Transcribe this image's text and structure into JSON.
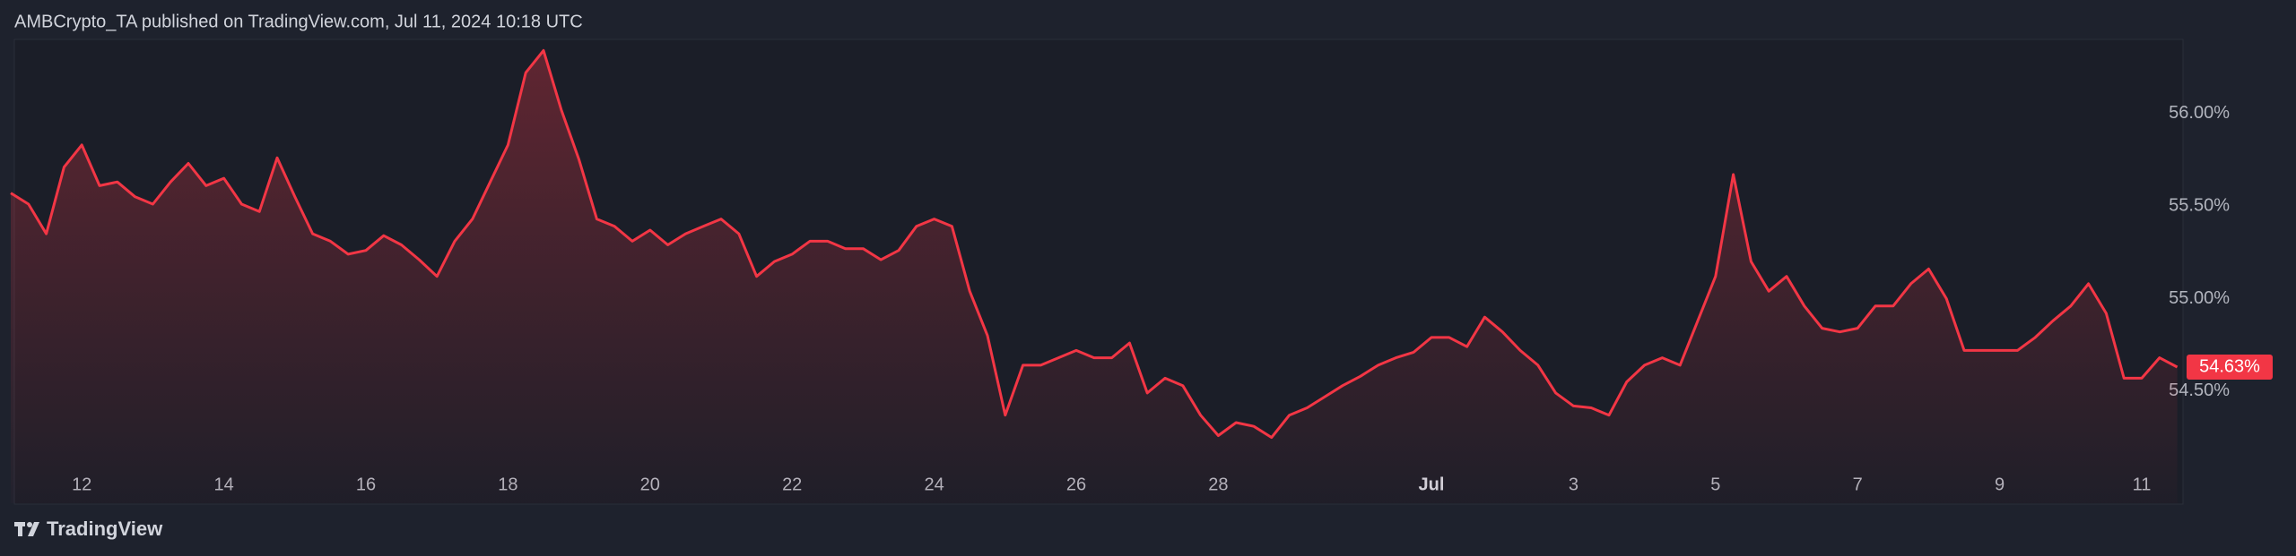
{
  "chart_data": {
    "type": "area",
    "title": "AMBCrypto_TA published on TradingView.com, Jul 11, 2024 10:18 UTC",
    "watermark": "TradingView",
    "color": "#f23645",
    "categories": [
      null,
      null,
      null,
      null,
      "12",
      null,
      null,
      null,
      null,
      null,
      null,
      null,
      "14",
      null,
      null,
      null,
      null,
      null,
      null,
      null,
      "16",
      null,
      null,
      null,
      null,
      null,
      null,
      null,
      "18",
      null,
      null,
      null,
      null,
      null,
      null,
      null,
      "20",
      null,
      null,
      null,
      null,
      null,
      null,
      null,
      "22",
      null,
      null,
      null,
      null,
      null,
      null,
      null,
      "24",
      null,
      null,
      null,
      null,
      null,
      null,
      null,
      "26",
      null,
      null,
      null,
      null,
      null,
      null,
      null,
      "28",
      null,
      null,
      null,
      null,
      null,
      null,
      null,
      null,
      null,
      null,
      null,
      "Jul",
      null,
      null,
      null,
      null,
      null,
      null,
      null,
      "3",
      null,
      null,
      null,
      null,
      null,
      null,
      null,
      "5",
      null,
      null,
      null,
      null,
      null,
      null,
      null,
      "7",
      null,
      null,
      null,
      null,
      null,
      null,
      null,
      "9",
      null,
      null,
      null,
      null,
      null,
      null,
      null,
      "11",
      null,
      null
    ],
    "values": [
      55.57,
      55.51,
      55.35,
      55.71,
      55.83,
      55.61,
      55.63,
      55.55,
      55.51,
      55.63,
      55.73,
      55.61,
      55.65,
      55.51,
      55.47,
      55.76,
      55.55,
      55.35,
      55.31,
      55.24,
      55.26,
      55.34,
      55.29,
      55.21,
      55.12,
      55.31,
      55.43,
      55.63,
      55.83,
      56.22,
      56.34,
      56.02,
      55.75,
      55.43,
      55.39,
      55.31,
      55.37,
      55.29,
      55.35,
      55.39,
      55.43,
      55.35,
      55.12,
      55.2,
      55.24,
      55.31,
      55.31,
      55.27,
      55.27,
      55.21,
      55.26,
      55.39,
      55.43,
      55.39,
      55.04,
      54.8,
      54.37,
      54.64,
      54.64,
      54.68,
      54.72,
      54.68,
      54.68,
      54.76,
      54.49,
      54.57,
      54.53,
      54.37,
      54.26,
      54.33,
      54.31,
      54.25,
      54.37,
      54.41,
      54.47,
      54.53,
      54.58,
      54.64,
      54.68,
      54.71,
      54.79,
      54.79,
      54.74,
      54.9,
      54.82,
      54.72,
      54.64,
      54.49,
      54.42,
      54.41,
      54.37,
      54.55,
      54.64,
      54.68,
      54.64,
      54.88,
      55.12,
      55.67,
      55.2,
      55.04,
      55.12,
      54.96,
      54.84,
      54.82,
      54.84,
      54.96,
      54.96,
      55.08,
      55.16,
      55.0,
      54.72,
      54.72,
      54.72,
      54.72,
      54.79,
      54.88,
      54.96,
      55.08,
      54.92,
      54.57,
      54.57,
      54.68,
      54.63
    ],
    "ylim": [
      53.89,
      56.4
    ],
    "yticks": [
      {
        "value": 54.5,
        "label": "54.50%"
      },
      {
        "value": 55,
        "label": "55.00%"
      },
      {
        "value": 55.5,
        "label": "55.50%"
      },
      {
        "value": 56,
        "label": "56.00%"
      }
    ],
    "last_value": {
      "value": 54.63,
      "label": "54.63%"
    },
    "grid": false
  }
}
